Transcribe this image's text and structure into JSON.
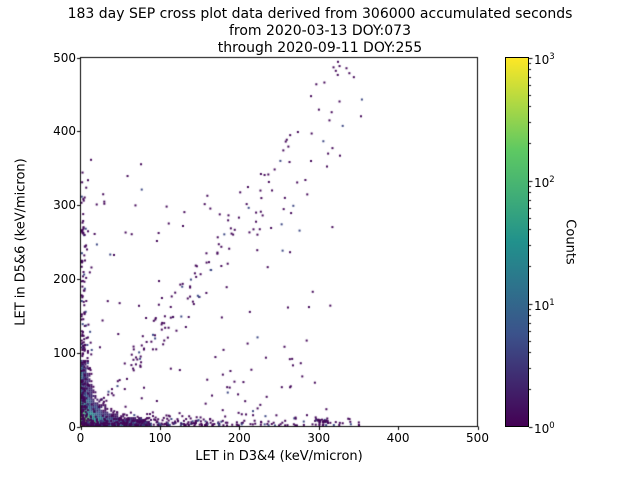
{
  "chart_data": {
    "type": "scatter",
    "title_lines": [
      "183 day SEP cross plot data derived from 306000 accumulated seconds",
      "from 2020-03-13 DOY:073",
      "through 2020-09-11 DOY:255"
    ],
    "xlabel": "LET in D3&4 (keV/micron)",
    "ylabel": "LET in D5&6 (keV/micron)",
    "xlim": [
      0,
      500
    ],
    "ylim": [
      0,
      500
    ],
    "xticks": [
      0,
      100,
      200,
      300,
      400,
      500
    ],
    "yticks": [
      0,
      100,
      200,
      300,
      400,
      500
    ],
    "grid": false,
    "colorbar": {
      "label": "Counts",
      "scale": "log",
      "range": [
        1,
        1000
      ],
      "tick_exponents": [
        3,
        2,
        1,
        0
      ],
      "cmap": "viridis",
      "cmap_stops": [
        "#440154",
        "#3b528b",
        "#21918c",
        "#5ec962",
        "#fde725"
      ]
    },
    "point_color_single": "#440154",
    "seed": 20200313,
    "density_model": {
      "extent": 90,
      "bin": 2.5,
      "peak": 900,
      "core_scale": 7,
      "arm": 45,
      "arm_narrow": 4.5,
      "arm_long": 40,
      "halo": 7,
      "halo_scale": 22
    },
    "clusters": [
      {
        "name": "x-axis-band",
        "type": "strip-x",
        "n": 380,
        "x_max": 350,
        "x_scale": 70,
        "uniform_frac": 0.35,
        "y_scale": 4
      },
      {
        "name": "y-axis-band",
        "type": "strip-y",
        "n": 240,
        "y_max": 360,
        "y_scale": 80,
        "uniform_frac": 0.3,
        "x_scale": 3.5
      },
      {
        "name": "diagonal-band",
        "type": "diagonal",
        "n": 150,
        "x_min": 15,
        "x_max": 355,
        "slope": 1.32
      },
      {
        "name": "sparse-field",
        "type": "field",
        "n": 130,
        "x_max": 320,
        "y_max": 320,
        "x_pow": 1.4,
        "y_pow": 1.6
      },
      {
        "name": "x-band-clump",
        "type": "blob",
        "n": 25,
        "x": 303,
        "y": 6,
        "sx": 7,
        "sy": 3
      }
    ],
    "outliers": [
      [
        325,
        487
      ],
      [
        343,
        472
      ],
      [
        352,
        419
      ],
      [
        299,
        428
      ],
      [
        262,
        357
      ],
      [
        236,
        330
      ],
      [
        208,
        300
      ],
      [
        75,
        354
      ],
      [
        58,
        338
      ],
      [
        12,
        360
      ],
      [
        95,
        250
      ],
      [
        150,
        205
      ],
      [
        118,
        180
      ]
    ]
  }
}
